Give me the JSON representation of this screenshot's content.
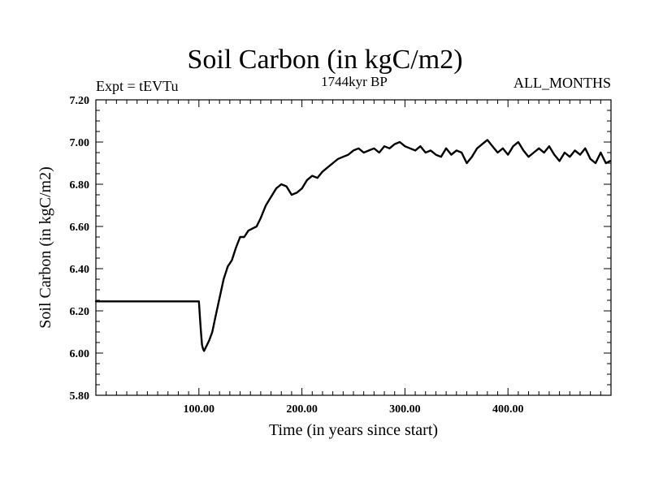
{
  "chart_data": {
    "type": "line",
    "title": "Soil Carbon (in kgC/m2)",
    "subtitle_left": "Expt = tEVTu",
    "subtitle_center": "1744kyr BP",
    "subtitle_right": "ALL_MONTHS",
    "xlabel": "Time (in years since start)",
    "ylabel": "Soil Carbon (in kgC/m2)",
    "xlim": [
      0,
      500
    ],
    "ylim": [
      5.8,
      7.2
    ],
    "x_ticks": [
      100,
      200,
      300,
      400
    ],
    "x_tick_labels": [
      "100.00",
      "200.00",
      "300.00",
      "400.00"
    ],
    "y_ticks": [
      5.8,
      6.0,
      6.2,
      6.4,
      6.6,
      6.8,
      7.0,
      7.2
    ],
    "y_tick_labels": [
      "5.80",
      "6.00",
      "6.20",
      "6.40",
      "6.60",
      "6.80",
      "7.00",
      "7.20"
    ],
    "series": [
      {
        "name": "Soil Carbon",
        "x": [
          0,
          99,
          100,
          101,
          102,
          103,
          104,
          105,
          106,
          108,
          110,
          113,
          116,
          120,
          124,
          128,
          132,
          136,
          140,
          144,
          148,
          152,
          156,
          160,
          165,
          170,
          175,
          180,
          185,
          190,
          195,
          200,
          205,
          210,
          215,
          220,
          225,
          230,
          235,
          240,
          245,
          250,
          255,
          260,
          265,
          270,
          275,
          280,
          285,
          290,
          295,
          300,
          305,
          310,
          315,
          320,
          325,
          330,
          335,
          340,
          345,
          350,
          355,
          360,
          365,
          370,
          375,
          380,
          385,
          390,
          395,
          400,
          405,
          410,
          415,
          420,
          425,
          430,
          435,
          440,
          445,
          450,
          455,
          460,
          465,
          470,
          475,
          480,
          485,
          490,
          495,
          499
        ],
        "y": [
          6.245,
          6.245,
          6.245,
          6.17,
          6.1,
          6.04,
          6.02,
          6.01,
          6.02,
          6.04,
          6.06,
          6.1,
          6.17,
          6.26,
          6.35,
          6.41,
          6.44,
          6.5,
          6.55,
          6.55,
          6.58,
          6.59,
          6.6,
          6.64,
          6.7,
          6.74,
          6.78,
          6.8,
          6.79,
          6.75,
          6.76,
          6.78,
          6.82,
          6.84,
          6.83,
          6.86,
          6.88,
          6.9,
          6.92,
          6.93,
          6.94,
          6.96,
          6.97,
          6.95,
          6.96,
          6.97,
          6.95,
          6.98,
          6.97,
          6.99,
          7.0,
          6.98,
          6.97,
          6.96,
          6.98,
          6.95,
          6.96,
          6.94,
          6.93,
          6.97,
          6.94,
          6.96,
          6.95,
          6.9,
          6.93,
          6.97,
          6.99,
          7.01,
          6.98,
          6.95,
          6.97,
          6.94,
          6.98,
          7.0,
          6.96,
          6.93,
          6.95,
          6.97,
          6.95,
          6.98,
          6.94,
          6.91,
          6.95,
          6.93,
          6.96,
          6.94,
          6.97,
          6.92,
          6.9,
          6.95,
          6.9,
          6.91
        ]
      }
    ]
  }
}
